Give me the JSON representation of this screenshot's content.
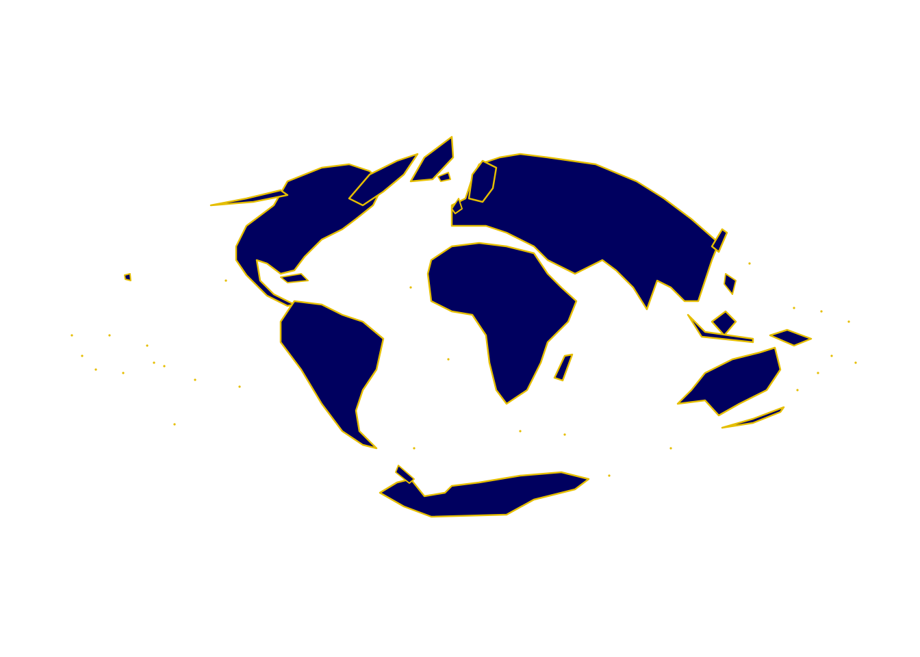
{
  "map": {
    "fill": "#00005f",
    "stroke": "#e5be01"
  }
}
